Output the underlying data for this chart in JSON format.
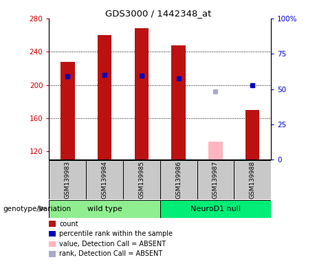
{
  "title": "GDS3000 / 1442348_at",
  "samples": [
    "GSM139983",
    "GSM139984",
    "GSM139985",
    "GSM139986",
    "GSM139987",
    "GSM139988"
  ],
  "group_wild": {
    "name": "wild type",
    "color": "#90EE90",
    "indices": [
      0,
      1,
      2
    ]
  },
  "group_neuro": {
    "name": "NeuroD1 null",
    "color": "#00EE76",
    "indices": [
      3,
      4,
      5
    ]
  },
  "ylim_left": [
    110,
    280
  ],
  "ylim_right": [
    0,
    100
  ],
  "yticks_left": [
    120,
    160,
    200,
    240,
    280
  ],
  "yticks_right": [
    0,
    25,
    50,
    75,
    100
  ],
  "ytick_labels_right": [
    "0",
    "25",
    "50",
    "75",
    "100%"
  ],
  "bar_color": "#BB1111",
  "blue_marker_color": "#0000BB",
  "pink_bar_color": "#FFB6C1",
  "lavender_marker_color": "#AAAACC",
  "red_bars": [
    228,
    260,
    268,
    248,
    110,
    170
  ],
  "blue_markers": [
    210,
    212,
    211,
    208,
    null,
    200
  ],
  "pink_bars": [
    null,
    null,
    null,
    null,
    132,
    null
  ],
  "lavender_markers": [
    null,
    null,
    null,
    null,
    192,
    null
  ],
  "legend_items": [
    {
      "label": "count",
      "color": "#BB1111"
    },
    {
      "label": "percentile rank within the sample",
      "color": "#0000BB"
    },
    {
      "label": "value, Detection Call = ABSENT",
      "color": "#FFB6C1"
    },
    {
      "label": "rank, Detection Call = ABSENT",
      "color": "#AAAACC"
    }
  ],
  "genotype_label": "genotype/variation",
  "left_axis_color": "#CC0000",
  "right_axis_color": "#0000CC",
  "tick_label_area_color": "#C8C8C8"
}
